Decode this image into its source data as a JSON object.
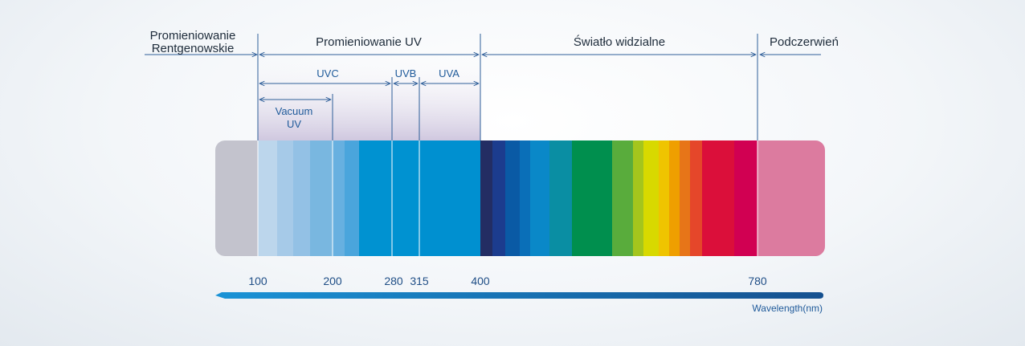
{
  "regions": {
    "xray": {
      "label_line1": "Promieniowanie",
      "label_line2": "Rentgenowskie"
    },
    "uv": {
      "label": "Promieniowanie UV"
    },
    "visible": {
      "label": "Światło widzialne"
    },
    "infrared": {
      "label": "Podczerwień"
    }
  },
  "uv_bands": {
    "uvc": "UVC",
    "uvb": "UVB",
    "uva": "UVA",
    "vacuum_line1": "Vacuum",
    "vacuum_line2": "UV"
  },
  "axis": {
    "ticks": [
      "100",
      "200",
      "280",
      "315",
      "400",
      "780"
    ],
    "unit_label": "Wavelength(nm)"
  },
  "colors": {
    "xray": "#c3c3cd",
    "uv_region_bg": "#e0daea",
    "infrared": "#dc7b9f",
    "axis_arrow": "#1a5fa8"
  }
}
